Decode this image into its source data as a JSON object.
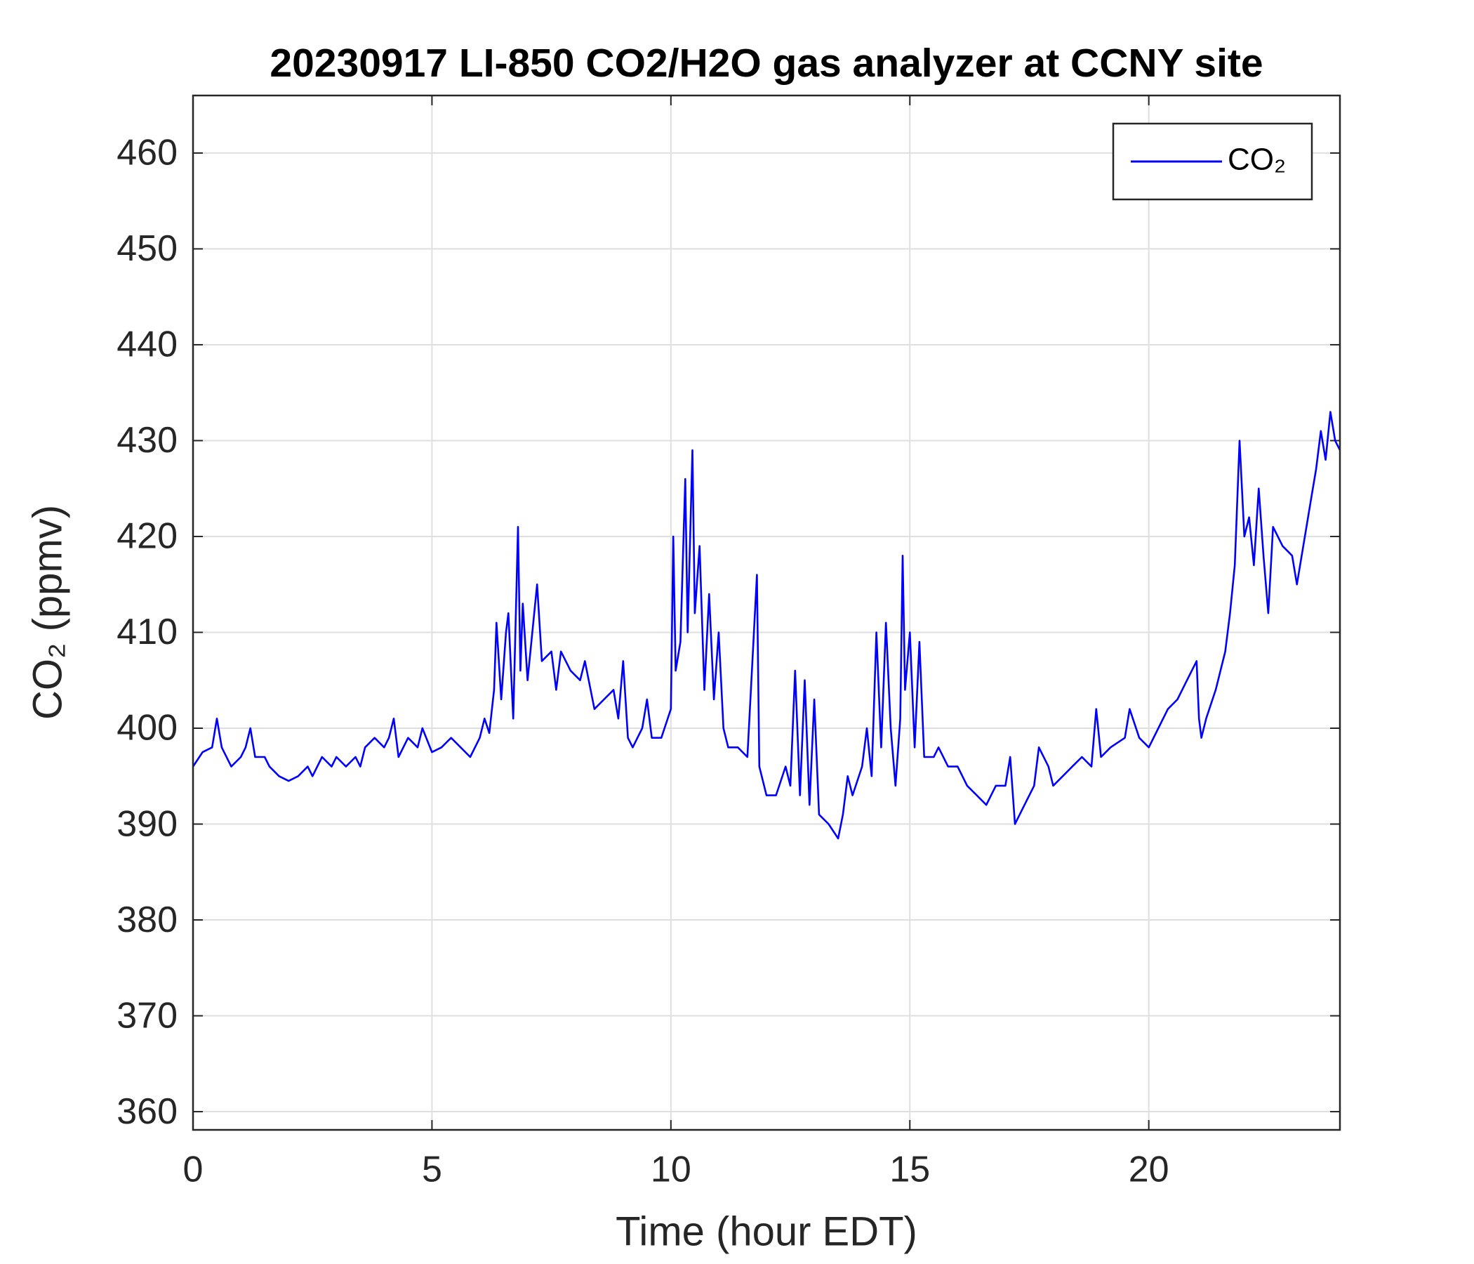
{
  "chart_data": {
    "type": "line",
    "title": "20230917 LI-850 CO2/H2O gas analyzer at CCNY site",
    "xlabel": "Time (hour EDT)",
    "ylabel": "CO₂ (ppmv)",
    "x": [
      0,
      0.2,
      0.4,
      0.5,
      0.6,
      0.8,
      1.0,
      1.1,
      1.2,
      1.3,
      1.5,
      1.6,
      1.8,
      2.0,
      2.2,
      2.4,
      2.5,
      2.7,
      2.9,
      3.0,
      3.2,
      3.4,
      3.5,
      3.6,
      3.8,
      4.0,
      4.1,
      4.2,
      4.3,
      4.5,
      4.7,
      4.8,
      5.0,
      5.2,
      5.4,
      5.6,
      5.8,
      6.0,
      6.1,
      6.2,
      6.3,
      6.35,
      6.45,
      6.55,
      6.6,
      6.7,
      6.8,
      6.85,
      6.9,
      7.0,
      7.1,
      7.2,
      7.3,
      7.5,
      7.6,
      7.7,
      7.9,
      8.1,
      8.2,
      8.4,
      8.6,
      8.8,
      8.9,
      9.0,
      9.1,
      9.2,
      9.4,
      9.5,
      9.6,
      9.8,
      10.0,
      10.05,
      10.1,
      10.2,
      10.3,
      10.35,
      10.45,
      10.5,
      10.6,
      10.7,
      10.8,
      10.9,
      11.0,
      11.1,
      11.2,
      11.4,
      11.6,
      11.8,
      11.85,
      12.0,
      12.2,
      12.4,
      12.5,
      12.6,
      12.7,
      12.8,
      12.9,
      13.0,
      13.1,
      13.3,
      13.5,
      13.6,
      13.7,
      13.8,
      14.0,
      14.1,
      14.2,
      14.3,
      14.4,
      14.5,
      14.6,
      14.7,
      14.8,
      14.85,
      14.9,
      15.0,
      15.1,
      15.2,
      15.3,
      15.5,
      15.6,
      15.8,
      16.0,
      16.2,
      16.4,
      16.6,
      16.8,
      17.0,
      17.1,
      17.2,
      17.4,
      17.6,
      17.7,
      17.9,
      18.0,
      18.2,
      18.4,
      18.6,
      18.8,
      18.9,
      19.0,
      19.2,
      19.5,
      19.6,
      19.8,
      20.0,
      20.2,
      20.4,
      20.6,
      20.8,
      21.0,
      21.05,
      21.1,
      21.2,
      21.4,
      21.5,
      21.6,
      21.7,
      21.8,
      21.9,
      21.95,
      22.0,
      22.1,
      22.2,
      22.3,
      22.4,
      22.5,
      22.6,
      22.8,
      23.0,
      23.1,
      23.2,
      23.4,
      23.5,
      23.6,
      23.7,
      23.8,
      23.9,
      24.0
    ],
    "series": [
      {
        "name": "CO₂",
        "color": "#0000ff",
        "values": [
          396,
          397.5,
          398,
          401,
          398,
          396,
          397,
          398,
          400,
          397,
          397,
          396,
          395,
          394.5,
          395,
          396,
          395,
          397,
          396,
          397,
          396,
          397,
          396,
          398,
          399,
          398,
          399,
          401,
          397,
          399,
          398,
          400,
          397.5,
          398,
          399,
          398,
          397,
          399,
          401,
          399.5,
          404,
          411,
          403,
          410,
          412,
          401,
          421,
          406,
          413,
          405,
          410,
          415,
          407,
          408,
          404,
          408,
          406,
          405,
          407,
          402,
          403,
          404,
          401,
          407,
          399,
          398,
          400,
          403,
          399,
          399,
          402,
          420,
          406,
          409,
          426,
          410,
          429,
          412,
          419,
          404,
          414,
          403,
          410,
          400,
          398,
          398,
          397,
          416,
          396,
          393,
          393,
          396,
          394,
          406,
          393,
          405,
          392,
          403,
          391,
          390,
          388.5,
          391,
          395,
          393,
          396,
          400,
          395,
          410,
          398,
          411,
          400,
          394,
          401,
          418,
          404,
          410,
          398,
          409,
          397,
          397,
          398,
          396,
          396,
          394,
          393,
          392,
          394,
          394,
          397,
          390,
          392,
          394,
          398,
          396,
          394,
          395,
          396,
          397,
          396,
          402,
          397,
          398,
          399,
          402,
          399,
          398,
          400,
          402,
          403,
          405,
          407,
          401,
          399,
          401,
          404,
          406,
          408,
          412,
          417,
          430,
          425,
          420,
          422,
          417,
          425,
          418,
          412,
          421,
          419,
          418,
          415,
          418,
          424,
          427,
          431,
          428,
          433,
          430,
          429
        ]
      }
    ],
    "xlim": [
      0,
      24
    ],
    "xticks": [
      0,
      5,
      10,
      15,
      20
    ],
    "ylim": [
      358.1,
      466
    ],
    "yticks": [
      360,
      370,
      380,
      390,
      400,
      410,
      420,
      430,
      440,
      450,
      460
    ],
    "grid": true,
    "legend": "northeast"
  }
}
